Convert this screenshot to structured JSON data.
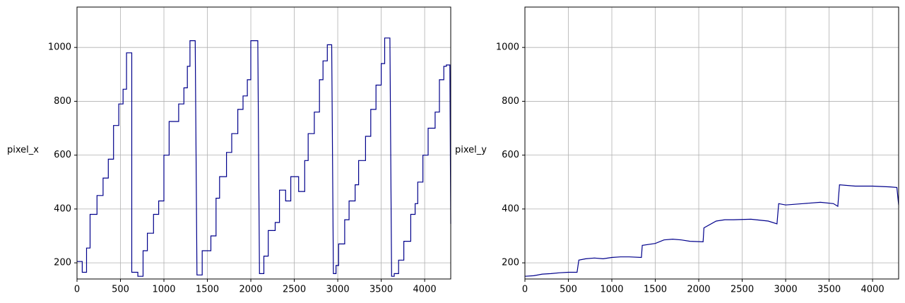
{
  "chart_data": [
    {
      "type": "line",
      "ylabel": "pixel_x",
      "color": "#00008b",
      "grid": true,
      "xlim": [
        0,
        4300
      ],
      "ylim": [
        140,
        1150
      ],
      "xticks": [
        0,
        500,
        1000,
        1500,
        2000,
        2500,
        3000,
        3500,
        4000
      ],
      "yticks": [
        200,
        400,
        600,
        800,
        1000
      ],
      "x": [
        0,
        60,
        60,
        110,
        110,
        150,
        150,
        230,
        230,
        300,
        300,
        360,
        360,
        420,
        420,
        480,
        480,
        530,
        530,
        570,
        570,
        630,
        630,
        700,
        700,
        760,
        760,
        810,
        810,
        880,
        880,
        940,
        940,
        1000,
        1000,
        1060,
        1060,
        1170,
        1170,
        1230,
        1230,
        1270,
        1270,
        1300,
        1300,
        1360,
        1380,
        1440,
        1440,
        1540,
        1540,
        1600,
        1600,
        1640,
        1640,
        1720,
        1720,
        1780,
        1780,
        1850,
        1850,
        1910,
        1910,
        1960,
        1960,
        2000,
        2000,
        2080,
        2100,
        2150,
        2150,
        2200,
        2200,
        2280,
        2280,
        2330,
        2330,
        2400,
        2400,
        2460,
        2460,
        2550,
        2550,
        2620,
        2620,
        2660,
        2660,
        2730,
        2730,
        2790,
        2790,
        2830,
        2830,
        2880,
        2880,
        2930,
        2950,
        2980,
        2980,
        3010,
        3010,
        3080,
        3080,
        3130,
        3130,
        3200,
        3200,
        3240,
        3240,
        3320,
        3320,
        3380,
        3380,
        3440,
        3440,
        3500,
        3500,
        3540,
        3540,
        3600,
        3620,
        3650,
        3650,
        3700,
        3700,
        3760,
        3760,
        3840,
        3840,
        3890,
        3890,
        3920,
        3920,
        3980,
        3980,
        4040,
        4040,
        4120,
        4120,
        4170,
        4170,
        4220,
        4220,
        4250,
        4250,
        4290,
        4300
      ],
      "values": [
        205,
        205,
        165,
        165,
        255,
        255,
        380,
        380,
        450,
        450,
        515,
        515,
        585,
        585,
        710,
        710,
        790,
        790,
        845,
        845,
        980,
        980,
        165,
        165,
        150,
        150,
        245,
        245,
        310,
        310,
        380,
        380,
        430,
        430,
        600,
        600,
        725,
        725,
        790,
        790,
        850,
        850,
        930,
        930,
        1025,
        1025,
        155,
        155,
        245,
        245,
        300,
        300,
        440,
        440,
        520,
        520,
        610,
        610,
        680,
        680,
        770,
        770,
        820,
        820,
        880,
        880,
        1025,
        1025,
        160,
        160,
        225,
        225,
        320,
        320,
        350,
        350,
        470,
        470,
        430,
        430,
        520,
        520,
        465,
        465,
        580,
        580,
        680,
        680,
        760,
        760,
        880,
        880,
        950,
        950,
        1010,
        1010,
        160,
        160,
        190,
        190,
        270,
        270,
        360,
        360,
        430,
        430,
        490,
        490,
        580,
        580,
        670,
        670,
        770,
        770,
        860,
        860,
        940,
        940,
        1035,
        1035,
        150,
        150,
        160,
        160,
        210,
        210,
        280,
        280,
        380,
        380,
        420,
        420,
        500,
        500,
        600,
        600,
        700,
        700,
        760,
        760,
        880,
        880,
        930,
        930,
        935,
        935,
        345
      ]
    },
    {
      "type": "line",
      "ylabel": "pixel_y",
      "color": "#00008b",
      "grid": true,
      "xlim": [
        0,
        4300
      ],
      "ylim": [
        140,
        1150
      ],
      "xticks": [
        0,
        500,
        1000,
        1500,
        2000,
        2500,
        3000,
        3500,
        4000
      ],
      "yticks": [
        200,
        400,
        600,
        800,
        1000
      ],
      "x": [
        0,
        100,
        200,
        300,
        400,
        500,
        600,
        620,
        700,
        800,
        900,
        1000,
        1100,
        1200,
        1340,
        1350,
        1500,
        1600,
        1700,
        1800,
        1900,
        2050,
        2060,
        2200,
        2300,
        2400,
        2600,
        2800,
        2900,
        2920,
        3000,
        3200,
        3400,
        3550,
        3600,
        3620,
        3800,
        4000,
        4200,
        4280,
        4300
      ],
      "values": [
        150,
        152,
        158,
        160,
        163,
        165,
        165,
        210,
        215,
        218,
        215,
        220,
        222,
        222,
        220,
        265,
        272,
        285,
        288,
        285,
        280,
        278,
        330,
        355,
        360,
        360,
        362,
        355,
        345,
        420,
        415,
        420,
        425,
        420,
        410,
        490,
        485,
        485,
        482,
        480,
        415
      ]
    }
  ]
}
